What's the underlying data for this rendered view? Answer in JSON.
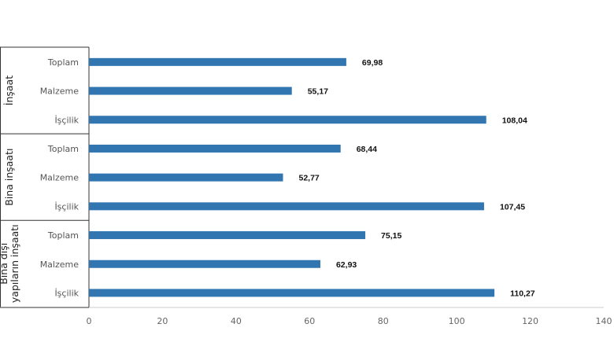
{
  "chart_data": {
    "type": "bar",
    "orientation": "horizontal",
    "xlim": [
      0,
      140
    ],
    "x_ticks": [
      "0",
      "20",
      "40",
      "60",
      "80",
      "100",
      "120",
      "140"
    ],
    "grid": false,
    "bar_color": "#3276B1",
    "groups": [
      {
        "label": "İnşaat",
        "label_lines": [
          "İnşaat"
        ],
        "bars": [
          {
            "category": "Toplam",
            "value": 69.98,
            "label": "69,98"
          },
          {
            "category": "Malzeme",
            "value": 55.17,
            "label": "55,17"
          },
          {
            "category": "İşçilik",
            "value": 108.04,
            "label": "108,04"
          }
        ]
      },
      {
        "label": "Bina inşaatı",
        "label_lines": [
          "Bina inşaatı"
        ],
        "bars": [
          {
            "category": "Toplam",
            "value": 68.44,
            "label": "68,44"
          },
          {
            "category": "Malzeme",
            "value": 52.77,
            "label": "52,77"
          },
          {
            "category": "İşçilik",
            "value": 107.45,
            "label": "107,45"
          }
        ]
      },
      {
        "label": "Bina dışı yapıların inşaatı",
        "label_lines": [
          "Bina dışı",
          "yapıların inşaatı"
        ],
        "bars": [
          {
            "category": "Toplam",
            "value": 75.15,
            "label": "75,15"
          },
          {
            "category": "Malzeme",
            "value": 62.93,
            "label": "62,93"
          },
          {
            "category": "İşçilik",
            "value": 110.27,
            "label": "110,27"
          }
        ]
      }
    ]
  }
}
